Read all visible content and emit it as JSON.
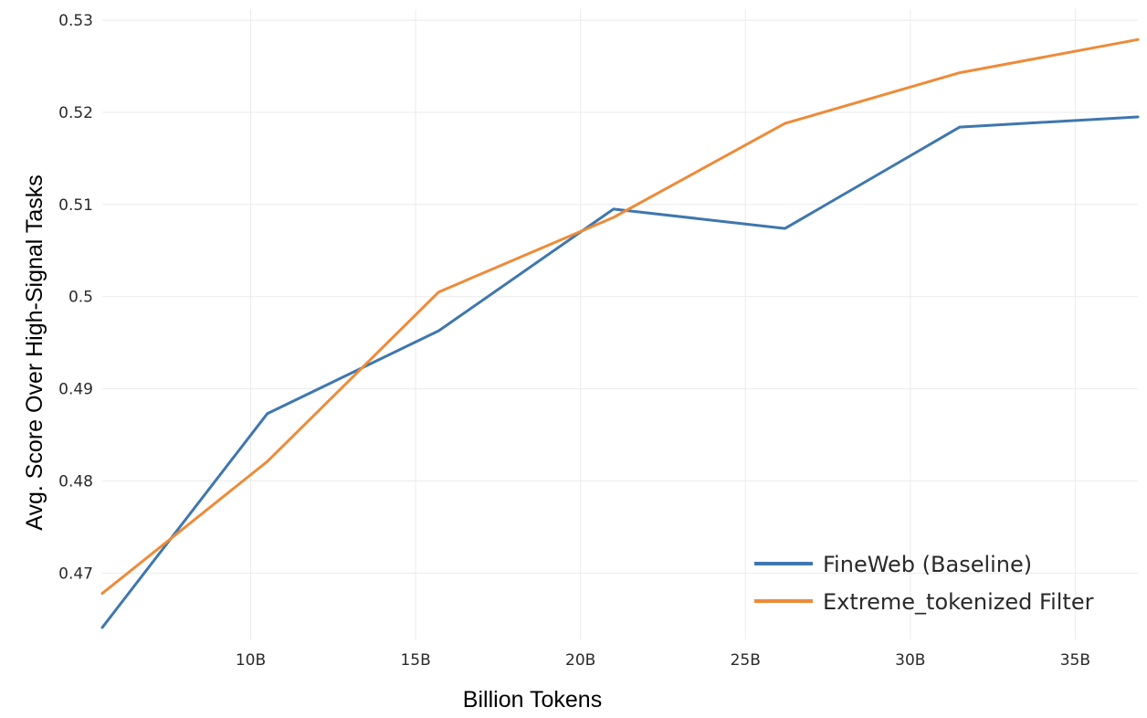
{
  "chart_data": {
    "type": "line",
    "xlabel": "Billion Tokens",
    "ylabel": "Avg. Score Over High-Signal Tasks",
    "xlim": [
      5.5,
      36.9
    ],
    "ylim": [
      0.4628,
      0.5312
    ],
    "x_ticks": [
      {
        "value": 10,
        "label": "10B"
      },
      {
        "value": 15,
        "label": "15B"
      },
      {
        "value": 20,
        "label": "20B"
      },
      {
        "value": 25,
        "label": "25B"
      },
      {
        "value": 30,
        "label": "30B"
      },
      {
        "value": 35,
        "label": "35B"
      }
    ],
    "y_ticks": [
      {
        "value": 0.47,
        "label": "0.47"
      },
      {
        "value": 0.48,
        "label": "0.48"
      },
      {
        "value": 0.49,
        "label": "0.49"
      },
      {
        "value": 0.5,
        "label": "0.5"
      },
      {
        "value": 0.51,
        "label": "0.51"
      },
      {
        "value": 0.52,
        "label": "0.52"
      },
      {
        "value": 0.53,
        "label": "0.53"
      }
    ],
    "grid": true,
    "legend_position": "bottom-right",
    "series": [
      {
        "name": "FineWeb (Baseline)",
        "color": "#3f77ae",
        "x": [
          5.5,
          10.5,
          15.7,
          21.0,
          26.2,
          31.5,
          36.9
        ],
        "y": [
          0.4641,
          0.4873,
          0.4963,
          0.5095,
          0.5074,
          0.5184,
          0.5195
        ]
      },
      {
        "name": "Extreme_tokenized Filter",
        "color": "#ed8b39",
        "x": [
          5.5,
          10.5,
          15.7,
          21.0,
          26.2,
          31.5,
          36.9
        ],
        "y": [
          0.4678,
          0.4821,
          0.5005,
          0.5086,
          0.5188,
          0.5243,
          0.5279
        ]
      }
    ]
  }
}
